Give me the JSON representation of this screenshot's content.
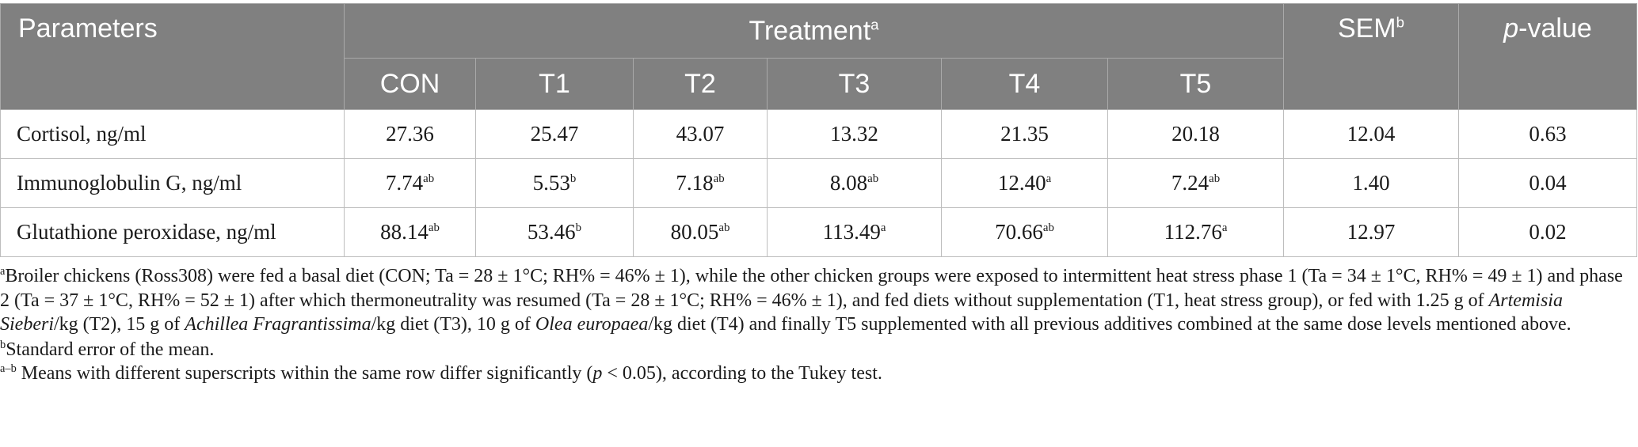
{
  "header": {
    "parameters": "Parameters",
    "treatment": "Treatment",
    "treatment_sup": "a",
    "sem": "SEM",
    "sem_sup": "b",
    "p_italic": "p",
    "p_rest": "-value",
    "groups": [
      "CON",
      "T1",
      "T2",
      "T3",
      "T4",
      "T5"
    ]
  },
  "rows": [
    {
      "label": "Cortisol, ng/ml",
      "values": [
        {
          "v": "27.36",
          "s": ""
        },
        {
          "v": "25.47",
          "s": ""
        },
        {
          "v": "43.07",
          "s": ""
        },
        {
          "v": "13.32",
          "s": ""
        },
        {
          "v": "21.35",
          "s": ""
        },
        {
          "v": "20.18",
          "s": ""
        }
      ],
      "sem": "12.04",
      "p": "0.63"
    },
    {
      "label": "Immunoglobulin G, ng/ml",
      "values": [
        {
          "v": "7.74",
          "s": "ab"
        },
        {
          "v": "5.53",
          "s": "b"
        },
        {
          "v": "7.18",
          "s": "ab"
        },
        {
          "v": "8.08",
          "s": "ab"
        },
        {
          "v": "12.40",
          "s": "a"
        },
        {
          "v": "7.24",
          "s": "ab"
        }
      ],
      "sem": "1.40",
      "p": "0.04"
    },
    {
      "label": "Glutathione peroxidase, ng/ml",
      "values": [
        {
          "v": "88.14",
          "s": "ab"
        },
        {
          "v": "53.46",
          "s": "b"
        },
        {
          "v": "80.05",
          "s": "ab"
        },
        {
          "v": "113.49",
          "s": "a"
        },
        {
          "v": "70.66",
          "s": "ab"
        },
        {
          "v": "112.76",
          "s": "a"
        }
      ],
      "sem": "12.97",
      "p": "0.02"
    }
  ],
  "footnotes": {
    "a_mark": "a",
    "a_text_1": "Broiler chickens (Ross308) were fed a basal diet (CON; Ta = 28 ± 1°C; RH% = 46% ± 1), while the other chicken groups were exposed to intermittent heat stress phase 1 (Ta = 34 ± 1°C, RH% = 49 ± 1) and phase 2 (Ta = 37 ± 1°C, RH% = 52 ± 1) after which thermoneutrality was resumed (Ta = 28 ± 1°C; RH% = 46% ± 1), and fed diets without supplementation (T1, heat stress group), or fed with 1.25 g of ",
    "a_em_1": "Artemisia Sieberi",
    "a_text_2": "/kg (T2), 15 g of ",
    "a_em_2": "Achillea Fragrantissima",
    "a_text_3": "/kg diet (T3), 10 g of ",
    "a_em_3": "Olea europaea",
    "a_text_4": "/kg diet (T4) and finally T5 supplemented with all previous additives combined at the same dose levels mentioned above.",
    "b_mark": "b",
    "b_text": "Standard error of the mean.",
    "ab_mark": "a–b",
    "ab_text_1": " Means with different superscripts within the same row differ significantly (",
    "ab_em": "p",
    "ab_text_2": " < 0.05), according to the Tukey test."
  }
}
